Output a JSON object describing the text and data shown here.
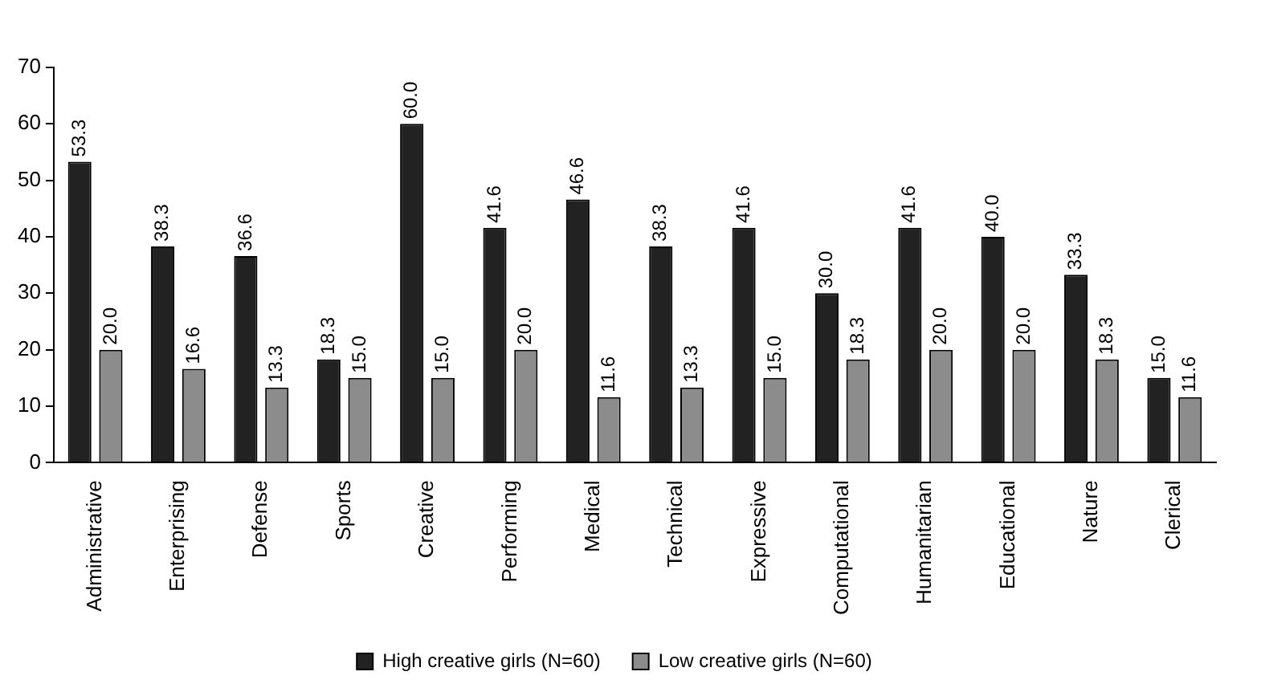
{
  "chart_data": {
    "type": "bar",
    "categories": [
      "Administrative",
      "Enterprising",
      "Defense",
      "Sports",
      "Creative",
      "Performing",
      "Medical",
      "Technical",
      "Expressive",
      "Computational",
      "Humanitarian",
      "Educational",
      "Nature",
      "Clerical"
    ],
    "series": [
      {
        "name": "High creative girls (N=60)",
        "color": "#222222",
        "values": [
          53.3,
          38.3,
          36.6,
          18.3,
          60.0,
          41.6,
          46.6,
          38.3,
          41.6,
          30.0,
          41.6,
          40.0,
          33.3,
          15.0
        ],
        "value_labels": [
          "53.3",
          "38.3",
          "36.6",
          "18.3",
          "60.0",
          "41.6",
          "46.6",
          "38.3",
          "41.6",
          "30.0",
          "41.6",
          "40.0",
          "33.3",
          "15.0"
        ]
      },
      {
        "name": "Low creative girls (N=60)",
        "color": "#8c8c8c",
        "values": [
          20.0,
          16.6,
          13.3,
          15.0,
          15.0,
          20.0,
          11.6,
          13.3,
          15.0,
          18.3,
          20.0,
          20.0,
          18.3,
          11.6
        ],
        "value_labels": [
          "20.0",
          "16.6",
          "13.3",
          "15.0",
          "15.0",
          "20.0",
          "11.6",
          "13.3",
          "15.0",
          "18.3",
          "20.0",
          "20.0",
          "18.3",
          "11.6"
        ]
      }
    ],
    "ylim": [
      0,
      70
    ],
    "yticks": [
      0,
      10,
      20,
      30,
      40,
      50,
      60,
      70
    ],
    "grid": false,
    "legend": "bottom"
  }
}
